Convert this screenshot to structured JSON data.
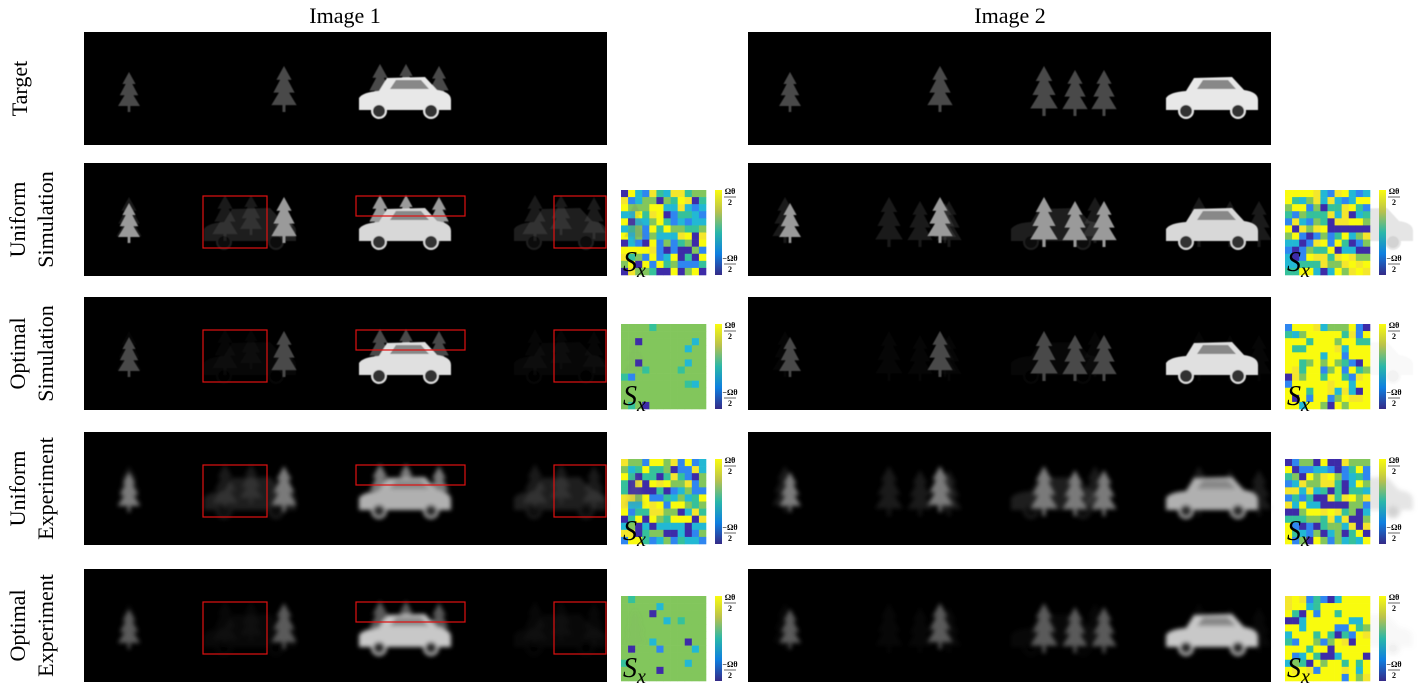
{
  "columns": [
    "Image 1",
    "Image 2"
  ],
  "rows": [
    {
      "label": [
        "Target"
      ]
    },
    {
      "label": [
        "Uniform",
        "Simulation"
      ]
    },
    {
      "label": [
        "Optimal",
        "Simulation"
      ]
    },
    {
      "label": [
        "Uniform",
        "Experiment"
      ]
    },
    {
      "label": [
        "Optimal",
        "Experiment"
      ]
    }
  ],
  "mosaic_label": {
    "main": "S",
    "sub": "x"
  },
  "colorbar": {
    "top": {
      "num": "Ωθ",
      "den": "2"
    },
    "bottom": {
      "num": "−Ωθ",
      "den": "2"
    }
  }
}
